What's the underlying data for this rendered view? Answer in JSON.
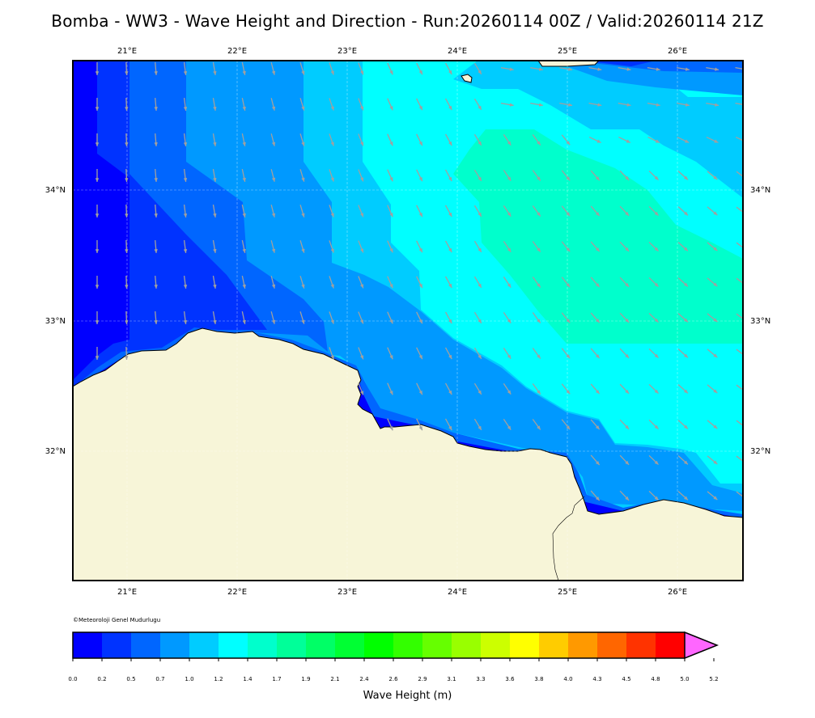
{
  "title": "Bomba - WW3 - Wave Height and Direction - Run:20260114 00Z / Valid:20260114 21Z",
  "credit": "©Meteoroloji Genel Mudurlugu",
  "colorbar": {
    "label": "Wave Height (m)",
    "ticks": [
      "0.0",
      "0.2",
      "0.5",
      "0.7",
      "1.0",
      "1.2",
      "1.4",
      "1.7",
      "1.9",
      "2.1",
      "2.4",
      "2.6",
      "2.9",
      "3.1",
      "3.3",
      "3.6",
      "3.8",
      "4.0",
      "4.3",
      "4.5",
      "4.8",
      "5.0",
      "5.2"
    ],
    "colors": [
      "#0000ff",
      "#0033ff",
      "#0066ff",
      "#0099ff",
      "#00ccff",
      "#00ffff",
      "#00ffcc",
      "#00ff99",
      "#00ff66",
      "#00ff33",
      "#00ff00",
      "#33ff00",
      "#66ff00",
      "#99ff00",
      "#ccff00",
      "#ffff00",
      "#ffcc00",
      "#ff9900",
      "#ff6600",
      "#ff3300",
      "#ff0000",
      "#ff66ff"
    ]
  },
  "map": {
    "lon_labels": [
      "21°E",
      "22°E",
      "23°E",
      "24°E",
      "25°E",
      "26°E"
    ],
    "lat_labels": [
      "34°N",
      "33°N",
      "32°N"
    ],
    "extent": {
      "lon_min": 20.5,
      "lon_max": 26.6,
      "lat_min": 31.0,
      "lat_max": 35.0
    },
    "land_color": "#f7f5d8",
    "arrow_color": "#a0a0a0"
  }
}
